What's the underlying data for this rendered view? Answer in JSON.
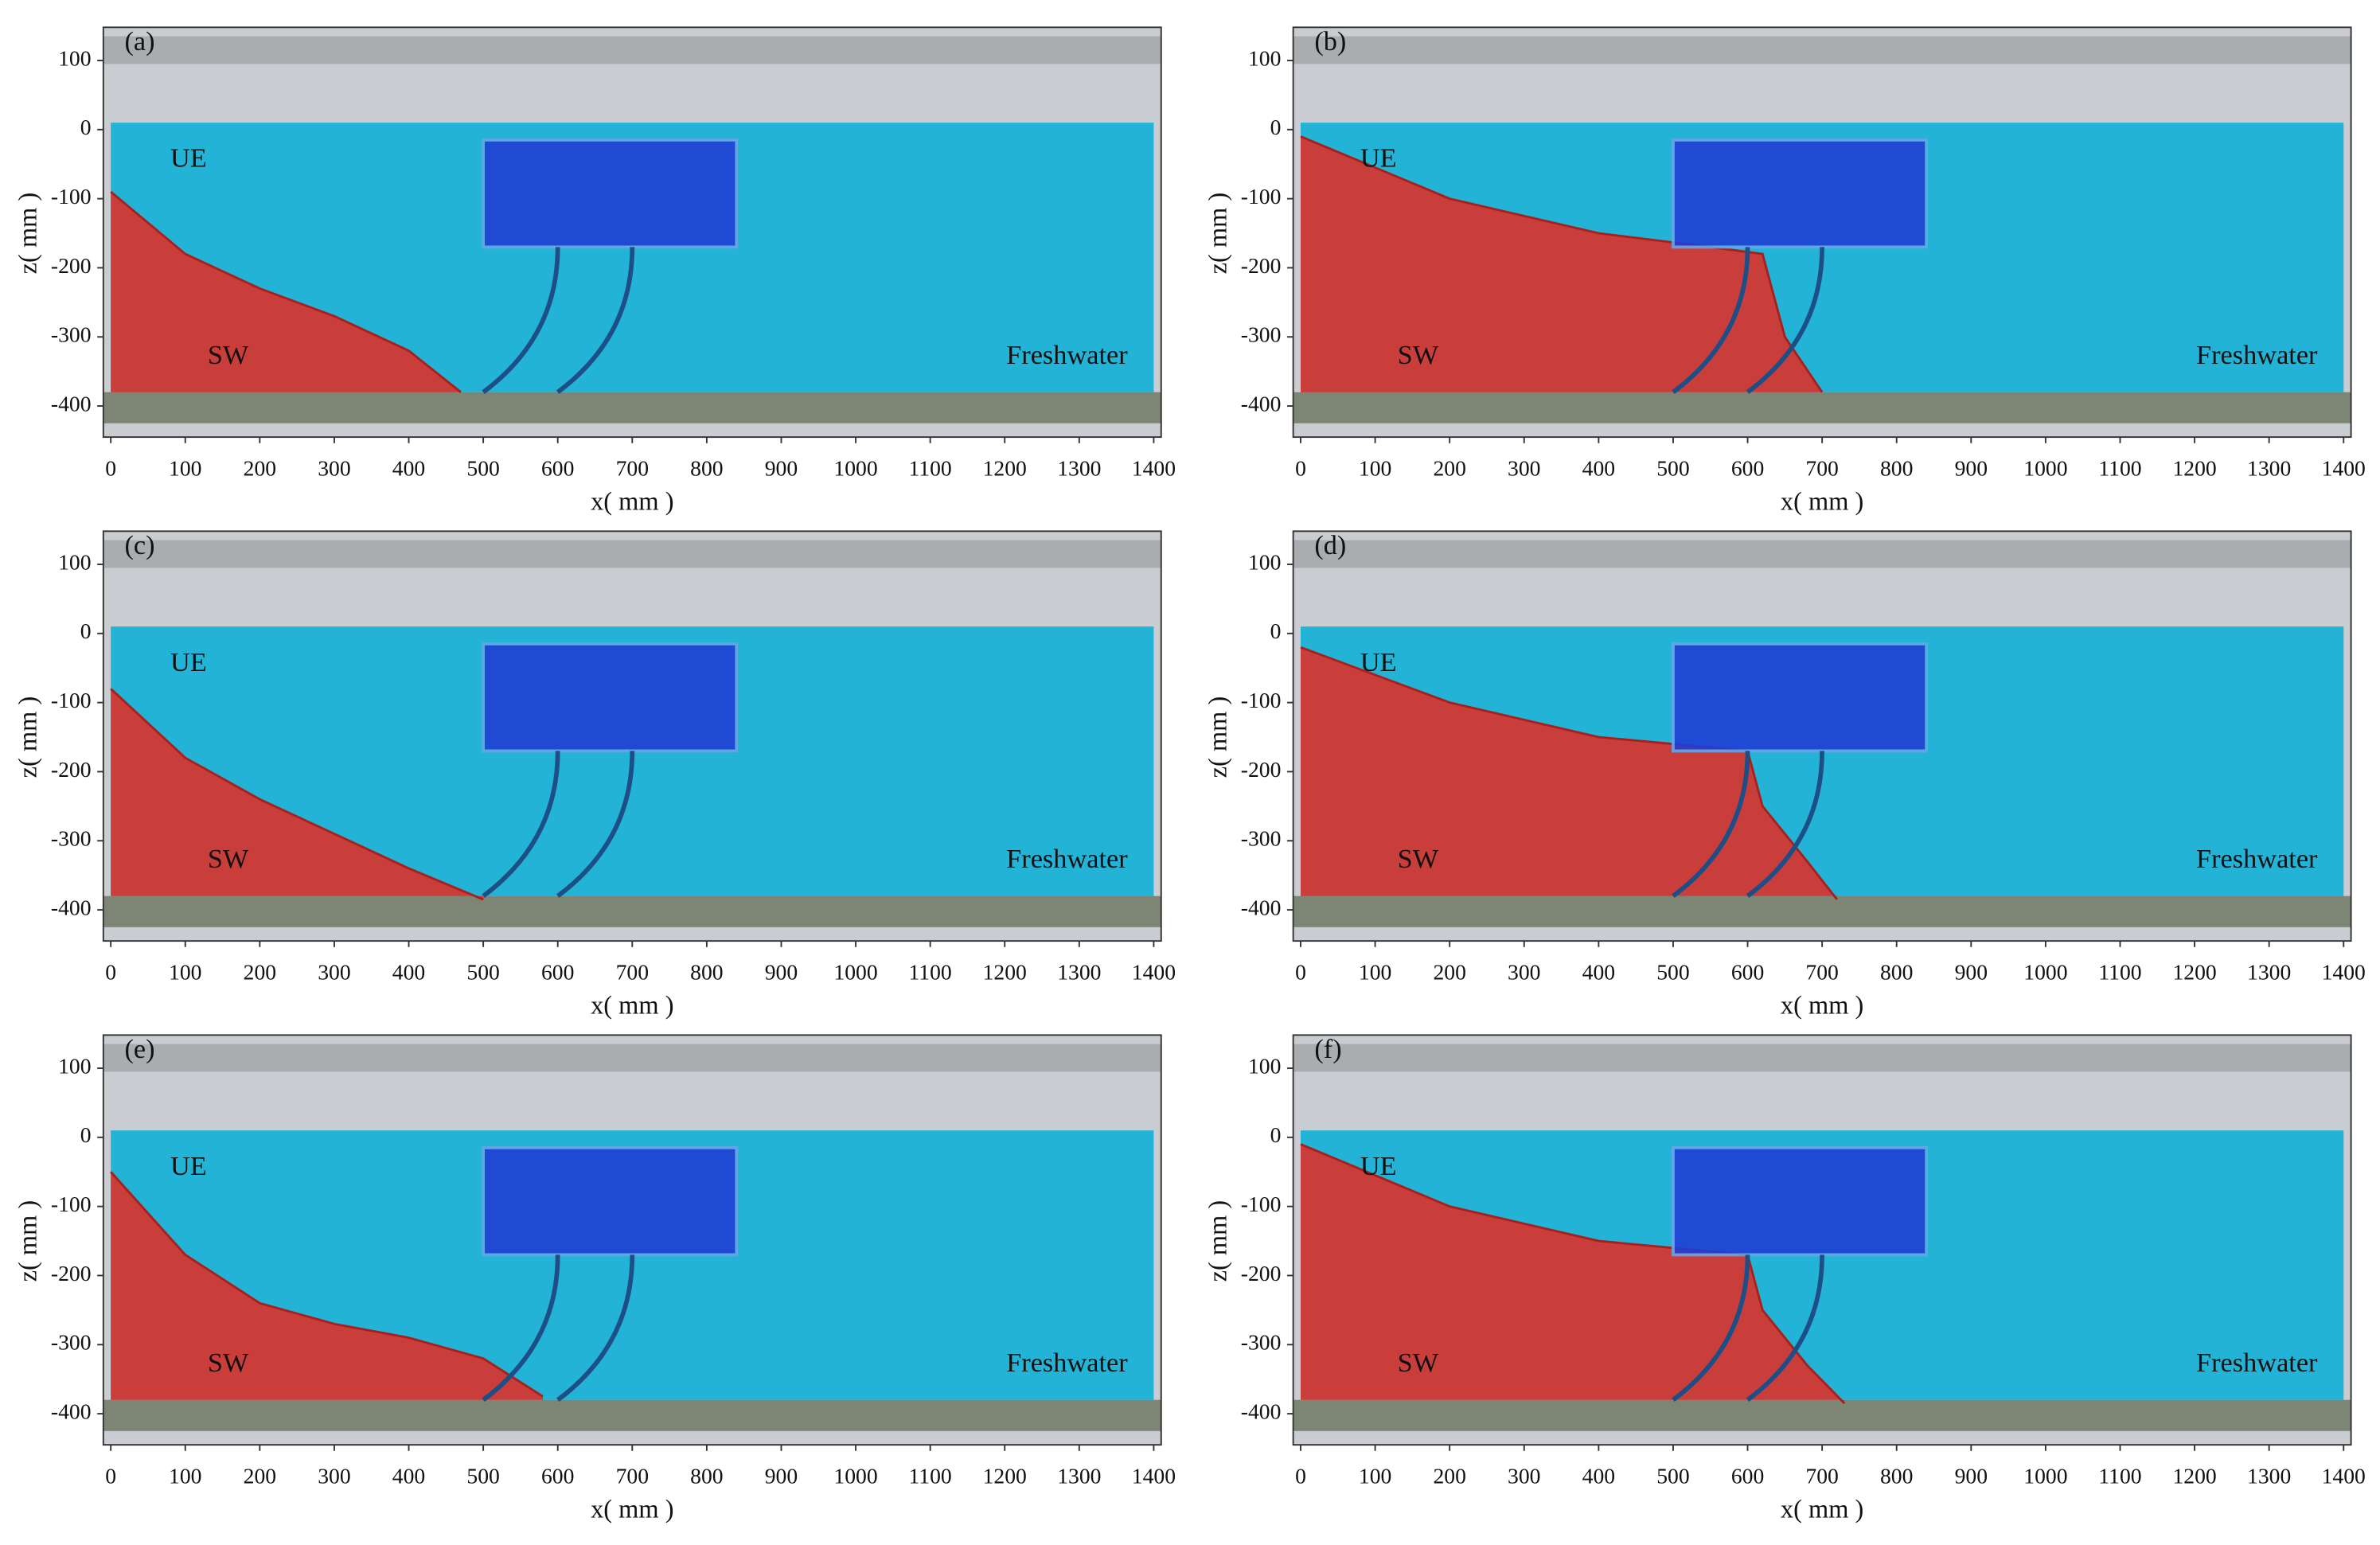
{
  "chart_data": [
    {
      "type": "image",
      "title": "(a)",
      "xlabel": "x( mm )",
      "ylabel": "z( mm )",
      "annotations": [
        "UE",
        "SW",
        "Freshwater"
      ],
      "xlim": [
        -10,
        1410
      ],
      "ylim": [
        -445,
        148
      ],
      "xticks": [
        0,
        100,
        200,
        300,
        400,
        500,
        600,
        700,
        800,
        900,
        1000,
        1100,
        1200,
        1300,
        1400
      ],
      "yticks": [
        100,
        0,
        -100,
        -200,
        -300,
        -400
      ],
      "interface_x": [
        0,
        100,
        200,
        300,
        400,
        470
      ],
      "interface_z": [
        -90,
        -180,
        -230,
        -270,
        -320,
        -380
      ]
    },
    {
      "type": "image",
      "title": "(b)",
      "xlabel": "x( mm )",
      "ylabel": "z( mm )",
      "annotations": [
        "UE",
        "SW",
        "Freshwater"
      ],
      "xlim": [
        -10,
        1410
      ],
      "ylim": [
        -445,
        148
      ],
      "xticks": [
        0,
        100,
        200,
        300,
        400,
        500,
        600,
        700,
        800,
        900,
        1000,
        1100,
        1200,
        1300,
        1400
      ],
      "yticks": [
        100,
        0,
        -100,
        -200,
        -300,
        -400
      ],
      "interface_x": [
        0,
        200,
        400,
        550,
        620,
        650,
        700
      ],
      "interface_z": [
        -10,
        -100,
        -150,
        -170,
        -180,
        -300,
        -380
      ]
    },
    {
      "type": "image",
      "title": "(c)",
      "xlabel": "x( mm )",
      "ylabel": "z( mm )",
      "annotations": [
        "UE",
        "SW",
        "Freshwater"
      ],
      "xlim": [
        -10,
        1410
      ],
      "ylim": [
        -445,
        148
      ],
      "xticks": [
        0,
        100,
        200,
        300,
        400,
        500,
        600,
        700,
        800,
        900,
        1000,
        1100,
        1200,
        1300,
        1400
      ],
      "yticks": [
        100,
        0,
        -100,
        -200,
        -300,
        -400
      ],
      "interface_x": [
        0,
        100,
        200,
        300,
        400,
        500
      ],
      "interface_z": [
        -80,
        -180,
        -240,
        -290,
        -340,
        -385
      ]
    },
    {
      "type": "image",
      "title": "(d)",
      "xlabel": "x( mm )",
      "ylabel": "z( mm )",
      "annotations": [
        "UE",
        "SW",
        "Freshwater"
      ],
      "xlim": [
        -10,
        1410
      ],
      "ylim": [
        -445,
        148
      ],
      "xticks": [
        0,
        100,
        200,
        300,
        400,
        500,
        600,
        700,
        800,
        900,
        1000,
        1100,
        1200,
        1300,
        1400
      ],
      "yticks": [
        100,
        0,
        -100,
        -200,
        -300,
        -400
      ],
      "interface_x": [
        0,
        200,
        400,
        600,
        620,
        680,
        720
      ],
      "interface_z": [
        -20,
        -100,
        -150,
        -170,
        -250,
        -330,
        -385
      ]
    },
    {
      "type": "image",
      "title": "(e)",
      "xlabel": "x( mm )",
      "ylabel": "z( mm )",
      "annotations": [
        "UE",
        "SW",
        "Freshwater"
      ],
      "xlim": [
        -10,
        1410
      ],
      "ylim": [
        -445,
        148
      ],
      "xticks": [
        0,
        100,
        200,
        300,
        400,
        500,
        600,
        700,
        800,
        900,
        1000,
        1100,
        1200,
        1300,
        1400
      ],
      "yticks": [
        100,
        0,
        -100,
        -200,
        -300,
        -400
      ],
      "interface_x": [
        0,
        100,
        200,
        300,
        400,
        500,
        580
      ],
      "interface_z": [
        -50,
        -170,
        -240,
        -270,
        -290,
        -320,
        -375
      ]
    },
    {
      "type": "image",
      "title": "(f)",
      "xlabel": "x( mm )",
      "ylabel": "z( mm )",
      "annotations": [
        "UE",
        "SW",
        "Freshwater"
      ],
      "xlim": [
        -10,
        1410
      ],
      "ylim": [
        -445,
        148
      ],
      "xticks": [
        0,
        100,
        200,
        300,
        400,
        500,
        600,
        700,
        800,
        900,
        1000,
        1100,
        1200,
        1300,
        1400
      ],
      "yticks": [
        100,
        0,
        -100,
        -200,
        -300,
        -400
      ],
      "interface_x": [
        0,
        200,
        400,
        600,
        620,
        680,
        730
      ],
      "interface_z": [
        -10,
        -100,
        -150,
        -170,
        -250,
        -330,
        -385
      ]
    }
  ]
}
